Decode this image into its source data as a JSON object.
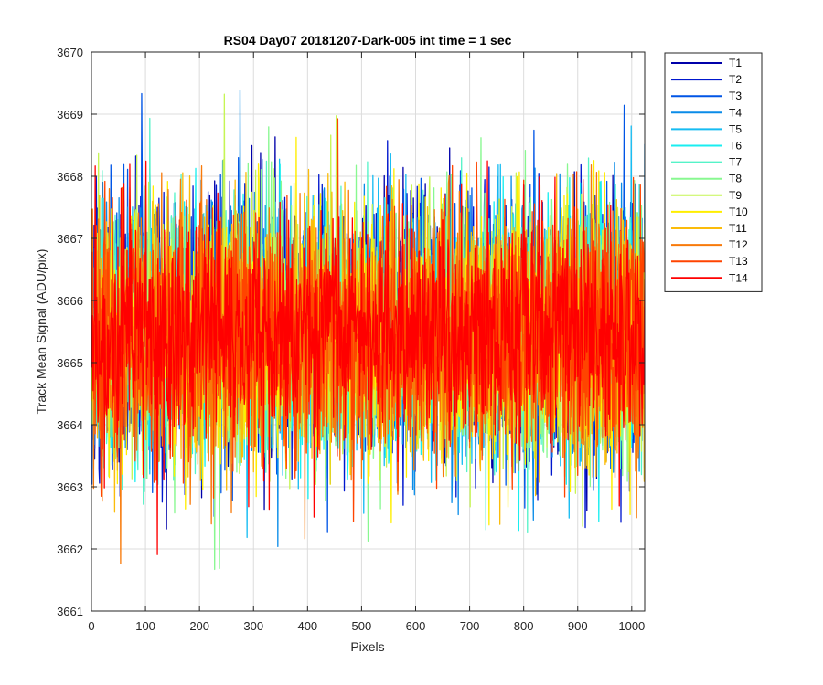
{
  "chart_data": {
    "type": "line",
    "title": "RS04 Day07 20181207-Dark-005 int time = 1 sec",
    "xlabel": "Pixels",
    "ylabel": "Track Mean Signal (ADU/pix)",
    "xlim": [
      0,
      1024
    ],
    "ylim": [
      3661,
      3670
    ],
    "xticks": [
      0,
      100,
      200,
      300,
      400,
      500,
      600,
      700,
      800,
      900,
      1000
    ],
    "yticks": [
      3661,
      3662,
      3663,
      3664,
      3665,
      3666,
      3667,
      3668,
      3669,
      3670
    ],
    "grid": true,
    "legend_position": "outside-top-right",
    "n_points": 1024,
    "series": [
      {
        "name": "T1",
        "color": "#0000aa",
        "mean": 3665.6,
        "std": 1.0
      },
      {
        "name": "T2",
        "color": "#0017ce",
        "mean": 3665.6,
        "std": 1.0
      },
      {
        "name": "T3",
        "color": "#0055e6",
        "mean": 3665.5,
        "std": 1.0
      },
      {
        "name": "T4",
        "color": "#0a8ce8",
        "mean": 3665.5,
        "std": 1.0
      },
      {
        "name": "T5",
        "color": "#16bcf2",
        "mean": 3665.5,
        "std": 1.0
      },
      {
        "name": "T6",
        "color": "#19eef0",
        "mean": 3665.4,
        "std": 1.0
      },
      {
        "name": "T7",
        "color": "#55f3c8",
        "mean": 3665.4,
        "std": 1.0
      },
      {
        "name": "T8",
        "color": "#88f890",
        "mean": 3665.4,
        "std": 1.0
      },
      {
        "name": "T9",
        "color": "#c6f554",
        "mean": 3665.4,
        "std": 1.0
      },
      {
        "name": "T10",
        "color": "#ffee00",
        "mean": 3665.4,
        "std": 1.0
      },
      {
        "name": "T11",
        "color": "#fbbc0a",
        "mean": 3665.4,
        "std": 1.0
      },
      {
        "name": "T12",
        "color": "#f87a0a",
        "mean": 3665.4,
        "std": 1.0
      },
      {
        "name": "T13",
        "color": "#ff4400",
        "mean": 3665.4,
        "std": 1.0
      },
      {
        "name": "T14",
        "color": "#ff0000",
        "mean": 3665.5,
        "std": 0.9
      }
    ]
  }
}
